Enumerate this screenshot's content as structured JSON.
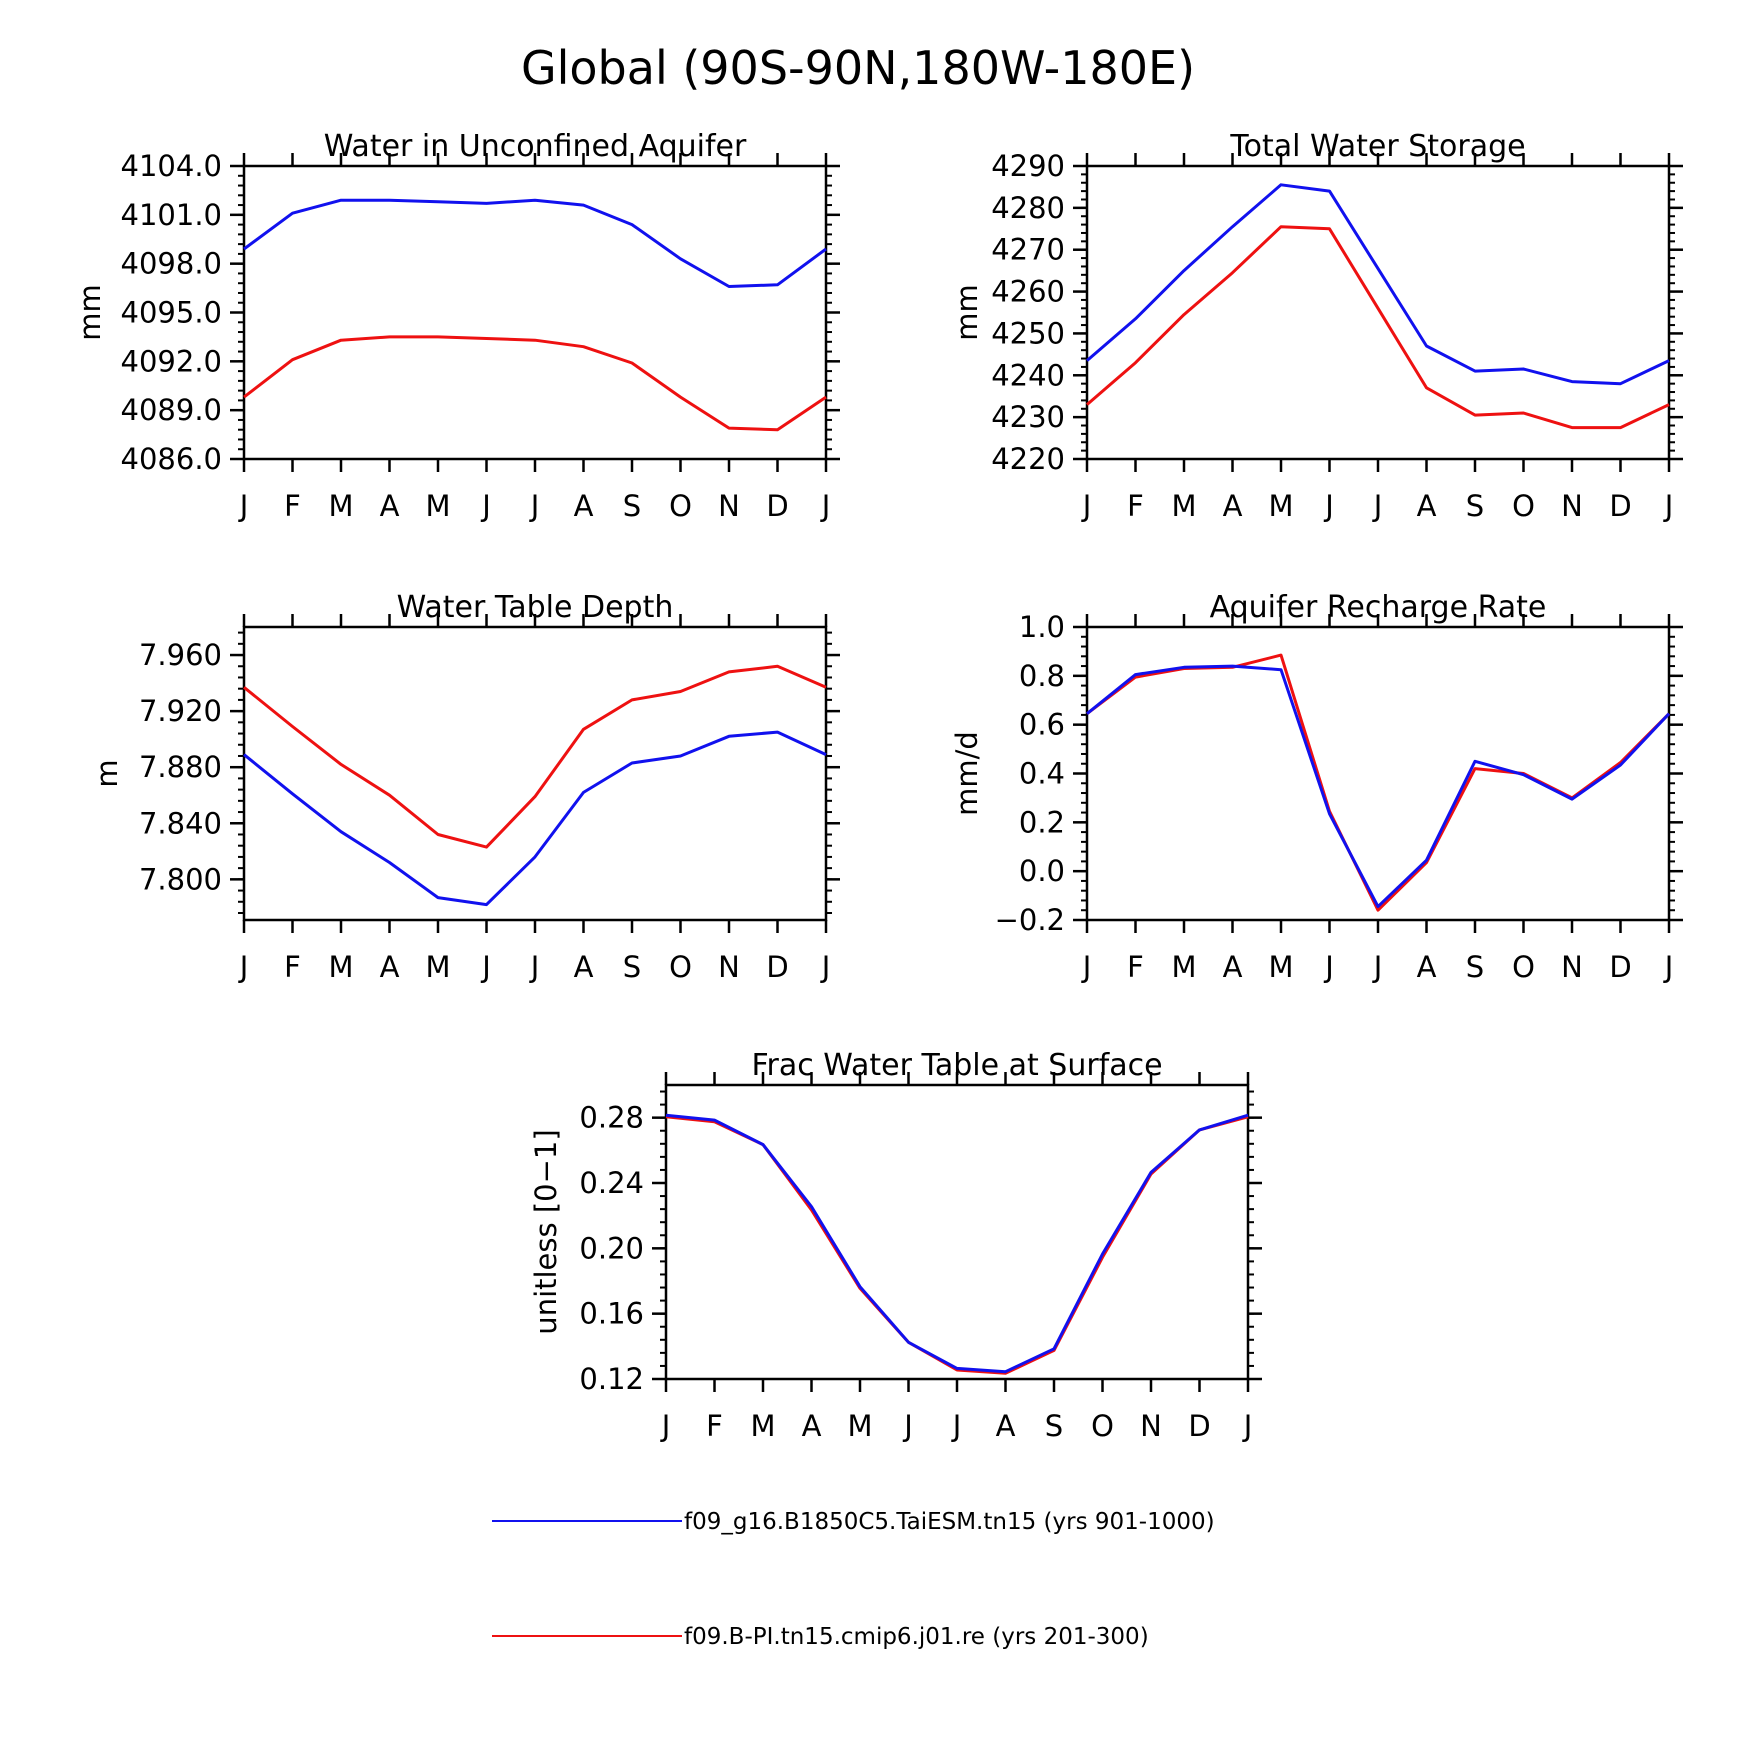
{
  "figure": {
    "title": "Global (90S-90N,180W-180E)"
  },
  "legend": {
    "entries": [
      {
        "label": "f09_g16.B1850C5.TaiESM.tn15 (yrs 901-1000)",
        "color": "#1111ee"
      },
      {
        "label": "f09.B-PI.tn15.cmip6.j01.re (yrs 201-300)",
        "color": "#ee1111"
      }
    ]
  },
  "chart_data": [
    {
      "type": "line",
      "title": "Water in Unconfined Aquifer",
      "xlabel": "",
      "ylabel": "mm",
      "categories": [
        "J",
        "F",
        "M",
        "A",
        "M",
        "J",
        "J",
        "A",
        "S",
        "O",
        "N",
        "D",
        "J"
      ],
      "ylim": [
        4086.0,
        4104.0
      ],
      "yticks": [
        "4086.0",
        "4089.0",
        "4092.0",
        "4095.0",
        "4098.0",
        "4101.0",
        "4104.0"
      ],
      "grid": false,
      "series": [
        {
          "name": "f09_g16.B1850C5.TaiESM.tn15 (yrs 901-1000)",
          "color": "#1111ee",
          "values": [
            4098.9,
            4101.1,
            4101.9,
            4101.9,
            4101.8,
            4101.7,
            4101.9,
            4101.6,
            4100.4,
            4098.3,
            4096.6,
            4096.7,
            4098.9
          ]
        },
        {
          "name": "f09.B-PI.tn15.cmip6.j01.re (yrs 201-300)",
          "color": "#ee1111",
          "values": [
            4089.8,
            4092.1,
            4093.3,
            4093.5,
            4093.5,
            4093.4,
            4093.3,
            4092.9,
            4091.9,
            4089.8,
            4087.9,
            4087.8,
            4089.8
          ]
        }
      ]
    },
    {
      "type": "line",
      "title": "Total Water Storage",
      "xlabel": "",
      "ylabel": "mm",
      "categories": [
        "J",
        "F",
        "M",
        "A",
        "M",
        "J",
        "J",
        "A",
        "S",
        "O",
        "N",
        "D",
        "J"
      ],
      "ylim": [
        4220,
        4290
      ],
      "yticks": [
        "4220",
        "4230",
        "4240",
        "4250",
        "4260",
        "4270",
        "4280",
        "4290"
      ],
      "grid": false,
      "series": [
        {
          "name": "f09_g16.B1850C5.TaiESM.tn15 (yrs 901-1000)",
          "color": "#1111ee",
          "values": [
            4243.5,
            4253.5,
            4265,
            4275.5,
            4285.5,
            4284,
            4265.5,
            4247,
            4241,
            4241.5,
            4238.5,
            4238,
            4243.5
          ]
        },
        {
          "name": "f09.B-PI.tn15.cmip6.j01.re (yrs 201-300)",
          "color": "#ee1111",
          "values": [
            4233,
            4243,
            4254.5,
            4264.5,
            4275.5,
            4275,
            4256,
            4237,
            4230.5,
            4231,
            4227.5,
            4227.5,
            4233
          ]
        }
      ]
    },
    {
      "type": "line",
      "title": "Water Table Depth",
      "xlabel": "",
      "ylabel": "m",
      "categories": [
        "J",
        "F",
        "M",
        "A",
        "M",
        "J",
        "J",
        "A",
        "S",
        "O",
        "N",
        "D",
        "J"
      ],
      "ylim": [
        7.771,
        7.98
      ],
      "yticks": [
        "7.800",
        "7.840",
        "7.880",
        "7.920",
        "7.960"
      ],
      "grid": false,
      "series": [
        {
          "name": "f09_g16.B1850C5.TaiESM.tn15 (yrs 901-1000)",
          "color": "#1111ee",
          "values": [
            7.889,
            7.861,
            7.834,
            7.812,
            7.787,
            7.782,
            7.816,
            7.862,
            7.883,
            7.888,
            7.902,
            7.905,
            7.889
          ]
        },
        {
          "name": "f09.B-PI.tn15.cmip6.j01.re (yrs 201-300)",
          "color": "#ee1111",
          "values": [
            7.937,
            7.909,
            7.882,
            7.86,
            7.832,
            7.823,
            7.859,
            7.907,
            7.928,
            7.934,
            7.948,
            7.952,
            7.937
          ]
        }
      ]
    },
    {
      "type": "line",
      "title": "Aquifer Recharge Rate",
      "xlabel": "",
      "ylabel": "mm/d",
      "categories": [
        "J",
        "F",
        "M",
        "A",
        "M",
        "J",
        "J",
        "A",
        "S",
        "O",
        "N",
        "D",
        "J"
      ],
      "ylim": [
        -0.2,
        1.0
      ],
      "yticks": [
        "-0.2",
        "0.0",
        "0.2",
        "0.4",
        "0.6",
        "0.8",
        "1.0"
      ],
      "grid": false,
      "series": [
        {
          "name": "f09_g16.B1850C5.TaiESM.tn15 (yrs 901-1000)",
          "color": "#1111ee",
          "values": [
            0.645,
            0.805,
            0.835,
            0.84,
            0.825,
            0.235,
            -0.145,
            0.045,
            0.45,
            0.395,
            0.295,
            0.435,
            0.645
          ]
        },
        {
          "name": "f09.B-PI.tn15.cmip6.j01.re (yrs 201-300)",
          "color": "#ee1111",
          "values": [
            0.645,
            0.795,
            0.83,
            0.835,
            0.885,
            0.245,
            -0.16,
            0.035,
            0.42,
            0.4,
            0.3,
            0.445,
            0.645
          ]
        }
      ]
    },
    {
      "type": "line",
      "title": "Frac Water Table at Surface",
      "xlabel": "",
      "ylabel": "unitless [0-1]",
      "categories": [
        "J",
        "F",
        "M",
        "A",
        "M",
        "J",
        "J",
        "A",
        "S",
        "O",
        "N",
        "D",
        "J"
      ],
      "ylim": [
        0.12,
        0.3
      ],
      "yticks": [
        "0.12",
        "0.16",
        "0.20",
        "0.24",
        "0.28"
      ],
      "grid": false,
      "series": [
        {
          "name": "f09_g16.B1850C5.TaiESM.tn15 (yrs 901-1000)",
          "color": "#1111ee",
          "values": [
            0.2815,
            0.2785,
            0.2635,
            0.2255,
            0.1765,
            0.1425,
            0.1265,
            0.1245,
            0.1385,
            0.1965,
            0.2465,
            0.2725,
            0.2815
          ]
        },
        {
          "name": "f09.B-PI.tn15.cmip6.j01.re (yrs 201-300)",
          "color": "#ee1111",
          "values": [
            0.2805,
            0.2775,
            0.2635,
            0.2235,
            0.1755,
            0.1425,
            0.1255,
            0.1235,
            0.1375,
            0.1945,
            0.2455,
            0.2725,
            0.2805
          ]
        }
      ]
    }
  ]
}
